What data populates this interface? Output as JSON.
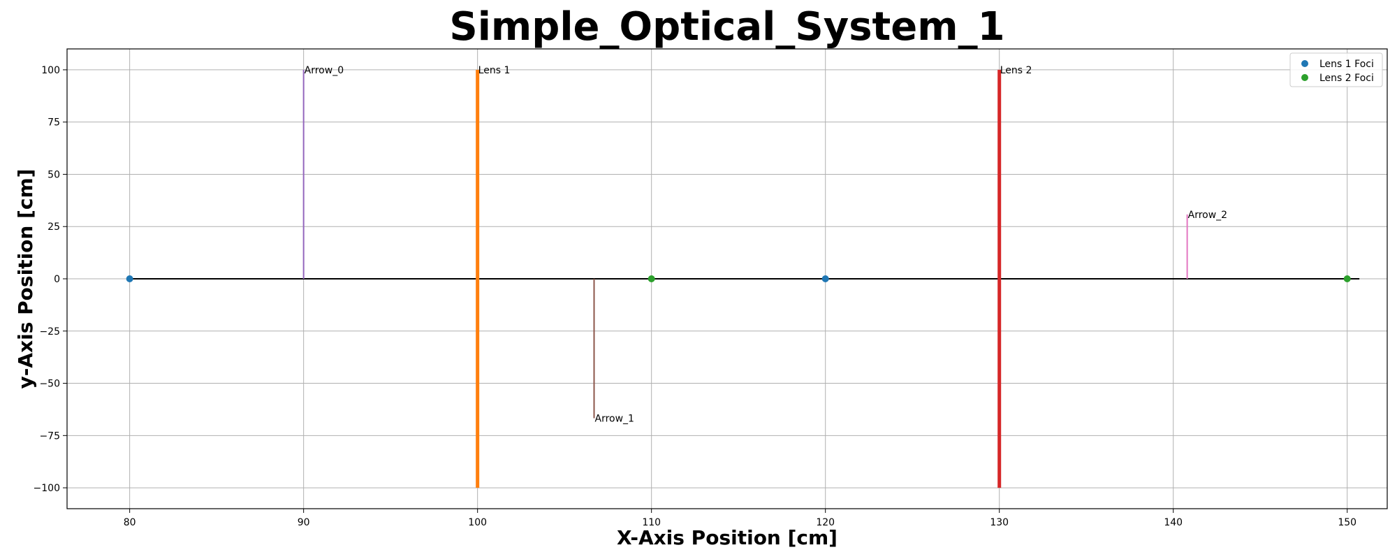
{
  "chart_data": {
    "type": "line",
    "title": "Simple_Optical_System_1",
    "xlabel": "X-Axis Position [cm]",
    "ylabel": "y-Axis Position [cm]",
    "xlim": [
      76.4,
      152.3
    ],
    "ylim": [
      -110,
      110
    ],
    "xticks": [
      80,
      90,
      100,
      110,
      120,
      130,
      140,
      150
    ],
    "yticks": [
      100,
      75,
      50,
      25,
      0,
      -25,
      -50,
      -75,
      -100
    ],
    "grid": true,
    "legend_position": "top-right",
    "optical_axis": {
      "x": [
        80,
        150.7
      ],
      "y": 0,
      "color": "#000000"
    },
    "elements": [
      {
        "label": "Arrow_0",
        "x": 90,
        "y0": 0,
        "y1": 100,
        "color": "#9467bd",
        "kind": "arrow"
      },
      {
        "label": "Lens 1",
        "x": 100,
        "y0": -100,
        "y1": 100,
        "color": "#ff7f0e",
        "kind": "lens"
      },
      {
        "label": "Arrow_1",
        "x": 106.7,
        "y0": 0,
        "y1": -66.7,
        "color": "#8c564b",
        "kind": "arrow"
      },
      {
        "label": "Lens 2",
        "x": 130,
        "y0": -100,
        "y1": 100,
        "color": "#d62728",
        "kind": "lens"
      },
      {
        "label": "Arrow_2",
        "x": 140.8,
        "y0": 0,
        "y1": 30.8,
        "color": "#e377c2",
        "kind": "arrow"
      }
    ],
    "series": [
      {
        "name": "Lens 1 Foci",
        "x": [
          80,
          120
        ],
        "y": [
          0,
          0
        ],
        "color": "#1f77b4"
      },
      {
        "name": "Lens 2 Foci",
        "x": [
          110,
          150
        ],
        "y": [
          0,
          0
        ],
        "color": "#2ca02c"
      }
    ]
  }
}
